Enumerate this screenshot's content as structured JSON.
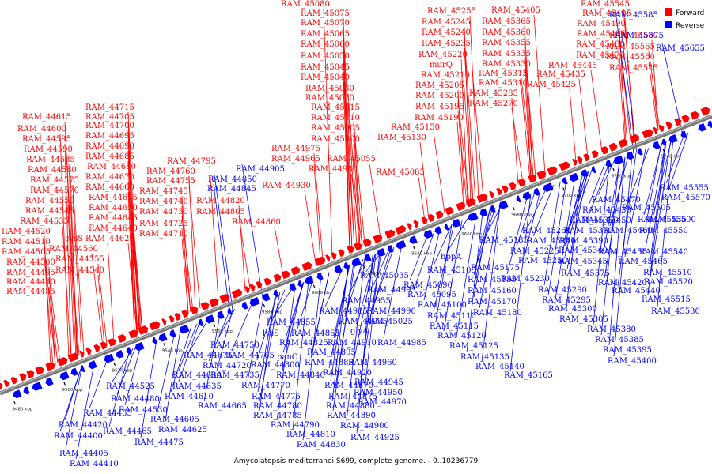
{
  "caption": "Amycolatopsis mediterranei S699, complete genome. - 0..10236779",
  "legend": [
    {
      "label": "Forward",
      "color": "#ff0000"
    },
    {
      "label": "Reverse",
      "color": "#0000ff"
    }
  ],
  "axis": {
    "kbp_start": 9480,
    "kbp_end": 9745,
    "ticks": [
      "9480 kbp",
      "9500 kbp",
      "9520 kbp",
      "9540 kbp",
      "9560 kbp",
      "9580 kbp",
      "9600 kbp",
      "9620 kbp",
      "9640 kbp",
      "9660 kbp",
      "9680 kbp",
      "9700 kbp",
      "9720 kbp",
      "9740 kbp"
    ]
  },
  "forward_genes": [
    "RAM_44485",
    "RAM_44490",
    "RAM_44495",
    "RAM_44500",
    "RAM_44505",
    "RAM_44510",
    "RAM_44520",
    "RAM_44535",
    "RAM_44545",
    "RAM_44550",
    "RAM_44570",
    "RAM_44575",
    "RAM_44580",
    "RAM_44585",
    "RAM_44590",
    "RAM_44595",
    "RAM_44600",
    "RAM_44615",
    "RAM_44540",
    "RAM_44555",
    "RAM_44560",
    "cysS",
    "RAM_44620",
    "RAM_44640",
    "RAM_44645",
    "RAM_44650",
    "RAM_44655",
    "RAM_44660",
    "RAM_44670",
    "RAM_44680",
    "RAM_44685",
    "RAM_44690",
    "RAM_44695",
    "RAM_44700",
    "RAM_44705",
    "RAM_44715",
    "RAM_44710",
    "RAM_44725",
    "RAM_44730",
    "RAM_44740",
    "RAM_44745",
    "RAM_44755",
    "RAM_44760",
    "RAM_44795",
    "RAM_44805",
    "RAM_44820",
    "RAM_44860",
    "RAM_44930",
    "RAM_44965",
    "RAM_44975",
    "RAM_44980",
    "RAM_45000",
    "RAM_45005",
    "RAM_45010",
    "RAM_45015",
    "RAM_45020",
    "RAM_45030",
    "RAM_45040",
    "RAM_45045",
    "RAM_45050",
    "RAM_45060",
    "RAM_45065",
    "RAM_45070",
    "RAM_45075",
    "RAM_45080",
    "RAM_45055",
    "RAM_45085",
    "RAM_45130",
    "RAM_45150",
    "RAM_45190",
    "RAM_45195",
    "RAM_45200",
    "RAM_45205",
    "RAM_45210",
    "murQ",
    "RAM_45220",
    "RAM_45235",
    "RAM_45240",
    "RAM_45245",
    "RAM_45255",
    "RAM_45270",
    "RAM_45285",
    "RAM_45310",
    "RAM_45315",
    "RAM_45330",
    "RAM_45335",
    "RAM_45355",
    "RAM_45360",
    "RAM_45365",
    "RAM_45405",
    "RAM_45425",
    "RAM_45435",
    "RAM_45445",
    "RAM_45475",
    "RAM_45480",
    "RAM_45485",
    "RAM_45490",
    "RAM_45495",
    "RAM_45545",
    "RAM_45525",
    "RAM_45560",
    "RAM_45565",
    "RAM_45580"
  ],
  "reverse_genes": [
    "RAM_44405",
    "RAM_44410",
    "RAM_44400",
    "RAM_44420",
    "RAM_44455",
    "RAM_44465",
    "RAM_44475",
    "RAM_44480",
    "RAM_44525",
    "RAM_44530",
    "RAM_44605",
    "RAM_44610",
    "RAM_44625",
    "RAM_44630",
    "RAM_44635",
    "RAM_44665",
    "RAM_44675",
    "RAM_44720",
    "RAM_44735",
    "RAM_44750",
    "RAM_44765",
    "RAM_44770",
    "RAM_44775",
    "RAM_44780",
    "RAM_44785",
    "RAM_44790",
    "RAM_44800",
    "RAM_44810",
    "RAM_44830",
    "panC",
    "lysS",
    "RAM_44825",
    "RAM_44840",
    "RAM_44845",
    "RAM_44850",
    "RAM_44855",
    "RAM_44865",
    "RAM_44870",
    "RAM_44875",
    "RAM_44880",
    "RAM_44885",
    "RAM_44890",
    "RAM_44895",
    "RAM_44900",
    "RAM_44905",
    "RAM_44910",
    "RAM_44915",
    "RAM_44920",
    "RAM_44925",
    "RAM_44935",
    "RAM_44945",
    "RAM_44950",
    "RAM_44955",
    "RAM_44960",
    "RAM_44970",
    "RAM_44985",
    "RAM_44990",
    "RAM_44995",
    "glyA",
    "RAM_45025",
    "RAM_45035",
    "RAM_45090",
    "RAM_45095",
    "RAM_45100",
    "RAM_45105",
    "RAM_45110",
    "RAM_45115",
    "RAM_45120",
    "RAM_45125",
    "RAM_45135",
    "RAM_45140",
    "hppA",
    "RAM_45155",
    "RAM_45160",
    "RAM_45165",
    "RAM_45170",
    "RAM_45175",
    "RAM_45180",
    "RAM_45185",
    "RAM_45225",
    "RAM_45230",
    "RAM_45250",
    "RAM_45260",
    "RAM_45280",
    "RAM_45290",
    "RAM_45295",
    "RAM_45300",
    "RAM_45305",
    "RAM_45340",
    "RAM_45345",
    "RAM_45350",
    "RAM_45370",
    "RAM_45375",
    "RAM_45380",
    "RAM_45385",
    "RAM_45390",
    "RAM_45395",
    "RAM_45400",
    "RAM_45420",
    "RAM_45430",
    "RAM_45440",
    "RAM_45450",
    "RAM_45455",
    "RAM_45460",
    "RAM_45465",
    "RAM_45470",
    "RAM_45500",
    "RAM_45505",
    "RAM_45510",
    "RAM_45515",
    "RAM_45520",
    "RAM_45530",
    "RAM_45535",
    "RAM_45540",
    "RAM_45550",
    "RAM_45555",
    "RAM_45570",
    "RAM_45575",
    "RAM_45585",
    "RAM_45655"
  ]
}
